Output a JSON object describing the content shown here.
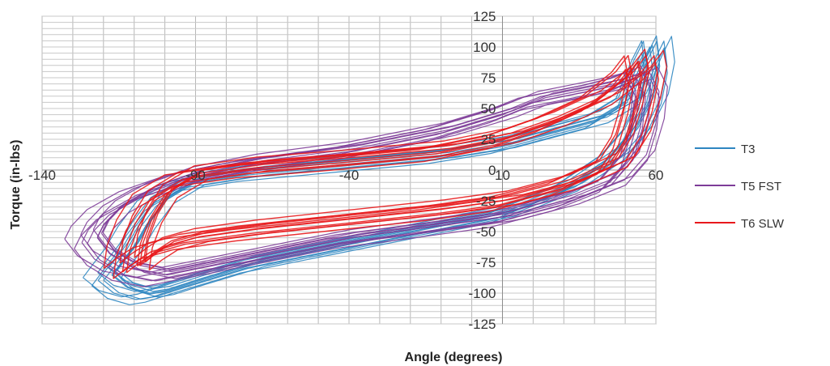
{
  "chart_data": {
    "type": "line",
    "title": "",
    "xlabel": "Angle (degrees)",
    "ylabel": "Torque  (in-lbs)",
    "xlim": [
      -140,
      60
    ],
    "ylim": [
      -125,
      125
    ],
    "x_ticks": [
      -140,
      -90,
      -40,
      10,
      60
    ],
    "x_tick_labels": [
      "-140",
      "-90",
      "-40",
      "10",
      "60"
    ],
    "y_ticks": [
      125,
      100,
      75,
      50,
      25,
      0,
      -25,
      -50,
      -75,
      -100,
      -125
    ],
    "y_tick_labels": [
      "125",
      "100",
      "75",
      "50",
      "25",
      "0",
      "-25",
      "-50",
      "-75",
      "-100",
      "-125"
    ],
    "grid": true,
    "legend_position": "right",
    "series": [
      {
        "name": "T3",
        "color": "#2E86C1",
        "x": [
          -117,
          -112,
          -105,
          -100,
          -90,
          -70,
          -40,
          -10,
          10,
          30,
          45,
          52,
          57,
          59,
          58,
          55,
          50,
          40,
          25,
          10,
          -10,
          -40,
          -70,
          -90,
          -100,
          -106,
          -110,
          -114,
          -117
        ],
        "y": [
          -85,
          -95,
          -100,
          -98,
          -90,
          -75,
          -60,
          -45,
          -35,
          -15,
          10,
          30,
          55,
          80,
          100,
          85,
          55,
          40,
          30,
          20,
          12,
          5,
          -2,
          -10,
          -25,
          -45,
          -62,
          -75,
          -85
        ]
      },
      {
        "name": "T5 FST",
        "color": "#7D3C98",
        "x": [
          -122,
          -118,
          -110,
          -100,
          -90,
          -70,
          -40,
          -10,
          10,
          30,
          45,
          52,
          55,
          56,
          53,
          48,
          40,
          30,
          20,
          10,
          -10,
          -40,
          -70,
          -90,
          -105,
          -115,
          -120,
          -122
        ],
        "y": [
          -55,
          -68,
          -80,
          -85,
          -80,
          -70,
          -55,
          -45,
          -38,
          -25,
          -10,
          10,
          35,
          60,
          75,
          70,
          65,
          60,
          55,
          45,
          30,
          15,
          5,
          -5,
          -18,
          -32,
          -45,
          -55
        ]
      },
      {
        "name": "T6 SLW",
        "color": "#E8191C",
        "x": [
          -109,
          -105,
          -100,
          -90,
          -70,
          -40,
          -10,
          10,
          30,
          45,
          50,
          53,
          55,
          54,
          50,
          40,
          25,
          10,
          -10,
          -40,
          -70,
          -90,
          -100,
          -105,
          -108,
          -109
        ],
        "y": [
          -78,
          -70,
          -62,
          -55,
          -48,
          -40,
          -32,
          -25,
          -12,
          5,
          25,
          50,
          75,
          88,
          75,
          55,
          38,
          25,
          15,
          8,
          2,
          -5,
          -20,
          -40,
          -60,
          -78
        ]
      }
    ]
  }
}
